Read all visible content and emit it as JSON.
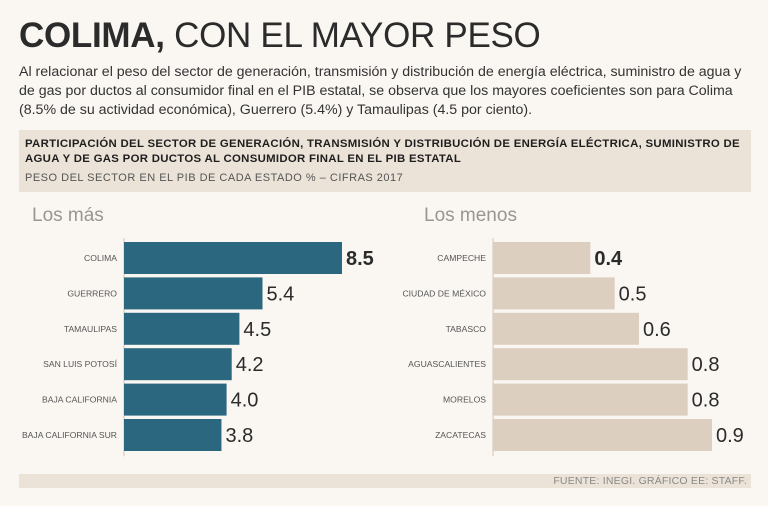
{
  "title": {
    "bold": "COLIMA,",
    "light": "CON EL MAYOR PESO"
  },
  "intro": "Al relacionar el peso del sector de generación, transmisión y distribución de energía eléctrica, suministro de agua y de gas por ductos al consumidor final en el PIB estatal, se observa que los mayores coeficientes son para Colima (8.5% de su actividad económica), Guerrero (5.4%) y Tamaulipas (4.5 por ciento).",
  "panel": {
    "heading": "Participación del sector de generación, transmisión y distribución de energía eléctrica, suministro de agua y de gas por ductos al consumidor final en el PIB estatal",
    "subheading": "PESO DEL SECTOR EN EL PIB DE CADA ESTADO % – CIFRAS 2017"
  },
  "colors": {
    "most": "#2b6880",
    "least": "#dccfc0",
    "axis": "#cfc6bb"
  },
  "chart_data": [
    {
      "type": "bar",
      "orientation": "horizontal",
      "title": "Los más",
      "categories": [
        "COLIMA",
        "GUERRERO",
        "TAMAULIPAS",
        "SAN LUIS POTOSÍ",
        "BAJA CALIFORNIA",
        "BAJA CALIFORNIA SUR"
      ],
      "values": [
        8.5,
        5.4,
        4.5,
        4.2,
        4.0,
        3.8
      ],
      "labels": [
        "8.5",
        "5.4",
        "4.5",
        "4.2",
        "4.0",
        "3.8"
      ],
      "xlim": [
        0,
        8.5
      ]
    },
    {
      "type": "bar",
      "orientation": "horizontal",
      "title": "Los menos",
      "categories": [
        "CAMPECHE",
        "CIUDAD DE MÉXICO",
        "TABASCO",
        "AGUASCALIENTES",
        "MORELOS",
        "ZACATECAS"
      ],
      "values": [
        0.4,
        0.5,
        0.6,
        0.8,
        0.8,
        0.9
      ],
      "labels": [
        "0.4",
        "0.5",
        "0.6",
        "0.8",
        "0.8",
        "0.9"
      ],
      "xlim": [
        0,
        0.9
      ]
    }
  ],
  "footer": "FUENTE: INEGI. GRÁFICO EE: STAFF."
}
